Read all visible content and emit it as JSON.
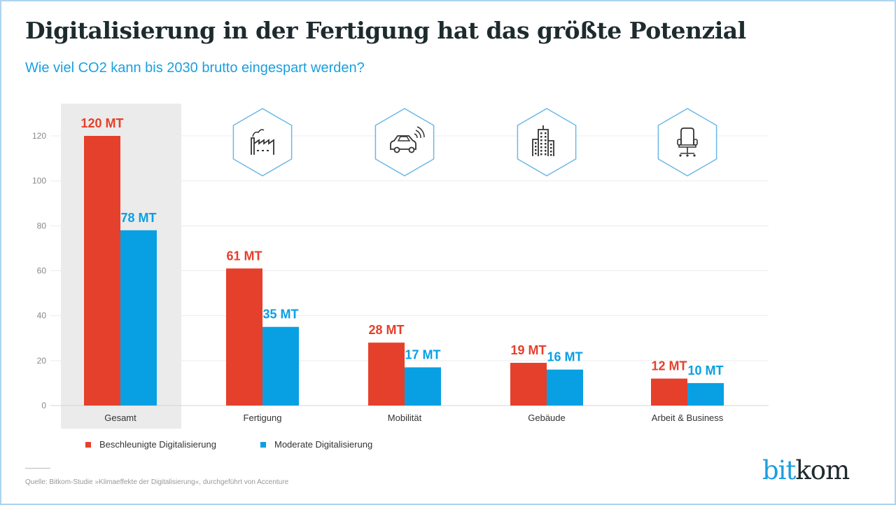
{
  "header": {
    "title": "Digitalisierung in der Fertigung hat das größte Potenzial",
    "subtitle": "Wie viel CO2 kann bis 2030 brutto eingespart werden?"
  },
  "colors": {
    "accelerated": "#e5402b",
    "moderate": "#08a0e3",
    "highlight_bg": "#ebebeb",
    "icon_border": "#6ab8e6"
  },
  "legend": [
    {
      "label": "Beschleunigte Digitalisierung",
      "color": "#e5402b"
    },
    {
      "label": "Moderate Digitalisierung",
      "color": "#08a0e3"
    }
  ],
  "source": "Quelle: Bitkom-Studie »Klimaeffekte der Digitalisierung«, durchgeführt von Accenture",
  "logo": {
    "part1": "bit",
    "part2": "kom"
  },
  "chart_data": {
    "type": "bar",
    "title": "Digitalisierung in der Fertigung hat das größte Potenzial",
    "subtitle": "Wie viel CO2 kann bis 2030 brutto eingespart werden?",
    "xlabel": "",
    "ylabel": "",
    "categories": [
      "Gesamt",
      "Fertigung",
      "Mobilität",
      "Gebäude",
      "Arbeit & Business"
    ],
    "category_icons": [
      null,
      "factory-icon",
      "connected-car-icon",
      "buildings-icon",
      "office-chair-icon"
    ],
    "highlighted_category": "Gesamt",
    "series": [
      {
        "name": "Beschleunigte Digitalisierung",
        "color": "#e5402b",
        "values": [
          120,
          61,
          28,
          19,
          12
        ],
        "labels": [
          "120 MT",
          "61 MT",
          "28 MT",
          "19 MT",
          "12 MT"
        ]
      },
      {
        "name": "Moderate Digitalisierung",
        "color": "#08a0e3",
        "values": [
          78,
          35,
          17,
          16,
          10
        ],
        "labels": [
          "78 MT",
          "35 MT",
          "17 MT",
          "16 MT",
          "10 MT"
        ]
      }
    ],
    "ylim": [
      0,
      120
    ],
    "yticks": [
      0,
      20,
      40,
      60,
      80,
      100,
      120
    ],
    "grid": true,
    "legend_position": "bottom-left"
  }
}
